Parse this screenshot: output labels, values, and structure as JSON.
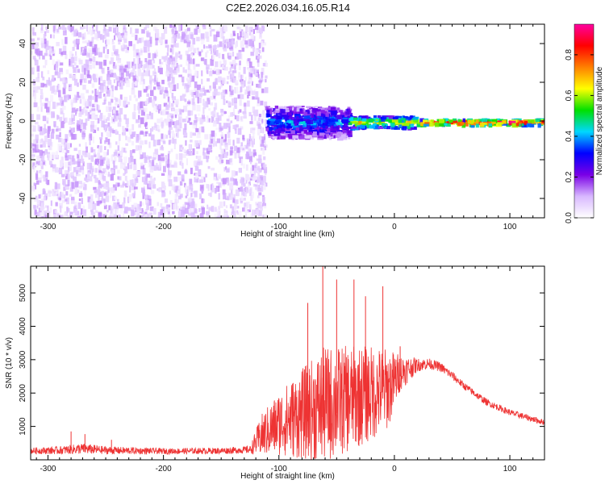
{
  "title": "C2E2.2026.034.16.05.R14",
  "chart_data": [
    {
      "type": "heatmap",
      "panel": "spectrogram",
      "xlabel": "Height of straight line (km)",
      "ylabel": "Frequency (Hz)",
      "xlim": [
        -315,
        130
      ],
      "ylim": [
        -50,
        50
      ],
      "xticks": [
        -300,
        -200,
        -100,
        0,
        100
      ],
      "yticks": [
        -40,
        -20,
        0,
        20,
        40
      ],
      "colorbar": {
        "label": "Normalized spectral amplitude",
        "range": [
          0,
          0.95
        ],
        "ticks": [
          0.0,
          0.2,
          0.4,
          0.6,
          0.8
        ],
        "colormap": [
          "#ffffff",
          "#d8b8ff",
          "#7a00e6",
          "#0000ff",
          "#00d8ff",
          "#00e000",
          "#ffff00",
          "#ff8000",
          "#ff0000",
          "#ff00a0"
        ]
      },
      "regions": [
        {
          "x_range": [
            -315,
            -112
          ],
          "freq_range": [
            -50,
            50
          ],
          "amplitude": 0.05,
          "description": "broadband noise"
        },
        {
          "x_range": [
            -112,
            -40
          ],
          "freq_range": [
            -8,
            8
          ],
          "amplitude": 0.3
        },
        {
          "x_range": [
            -40,
            20
          ],
          "freq_range": [
            -3,
            3
          ],
          "amplitude": 0.55
        },
        {
          "x_range": [
            20,
            130
          ],
          "freq_range": [
            -1.5,
            1.5
          ],
          "amplitude": 0.75
        }
      ]
    },
    {
      "type": "line",
      "panel": "snr",
      "xlabel": "Height of straight line (km)",
      "ylabel": "SNR (10 * v/v)",
      "xlim": [
        -315,
        130
      ],
      "ylim": [
        0,
        5800
      ],
      "xticks": [
        -300,
        -200,
        -100,
        0,
        100
      ],
      "yticks": [
        1000,
        2000,
        3000,
        4000,
        5000
      ],
      "color": "#ee3333",
      "envelope": {
        "x": [
          -315,
          -290,
          -270,
          -250,
          -200,
          -150,
          -125,
          -115,
          -100,
          -80,
          -60,
          -40,
          -20,
          -5,
          5,
          20,
          30,
          40,
          50,
          60,
          80,
          100,
          130
        ],
        "base": [
          250,
          260,
          300,
          260,
          240,
          250,
          280,
          600,
          900,
          1100,
          1300,
          1500,
          1700,
          1900,
          2500,
          2800,
          2850,
          2750,
          2500,
          2200,
          1700,
          1400,
          1100
        ],
        "spread": [
          120,
          150,
          200,
          150,
          110,
          120,
          140,
          800,
          1200,
          1700,
          2200,
          2000,
          1800,
          1500,
          700,
          250,
          200,
          180,
          160,
          140,
          130,
          120,
          110
        ]
      },
      "peaks": [
        {
          "x": -280,
          "y": 850
        },
        {
          "x": -268,
          "y": 770
        },
        {
          "x": -245,
          "y": 600
        },
        {
          "x": -62,
          "y": 5800
        },
        {
          "x": -50,
          "y": 5400
        },
        {
          "x": -35,
          "y": 5400
        },
        {
          "x": -25,
          "y": 4900
        },
        {
          "x": -10,
          "y": 5200
        },
        {
          "x": -75,
          "y": 4700
        },
        {
          "x": 5,
          "y": 3400
        }
      ]
    }
  ]
}
